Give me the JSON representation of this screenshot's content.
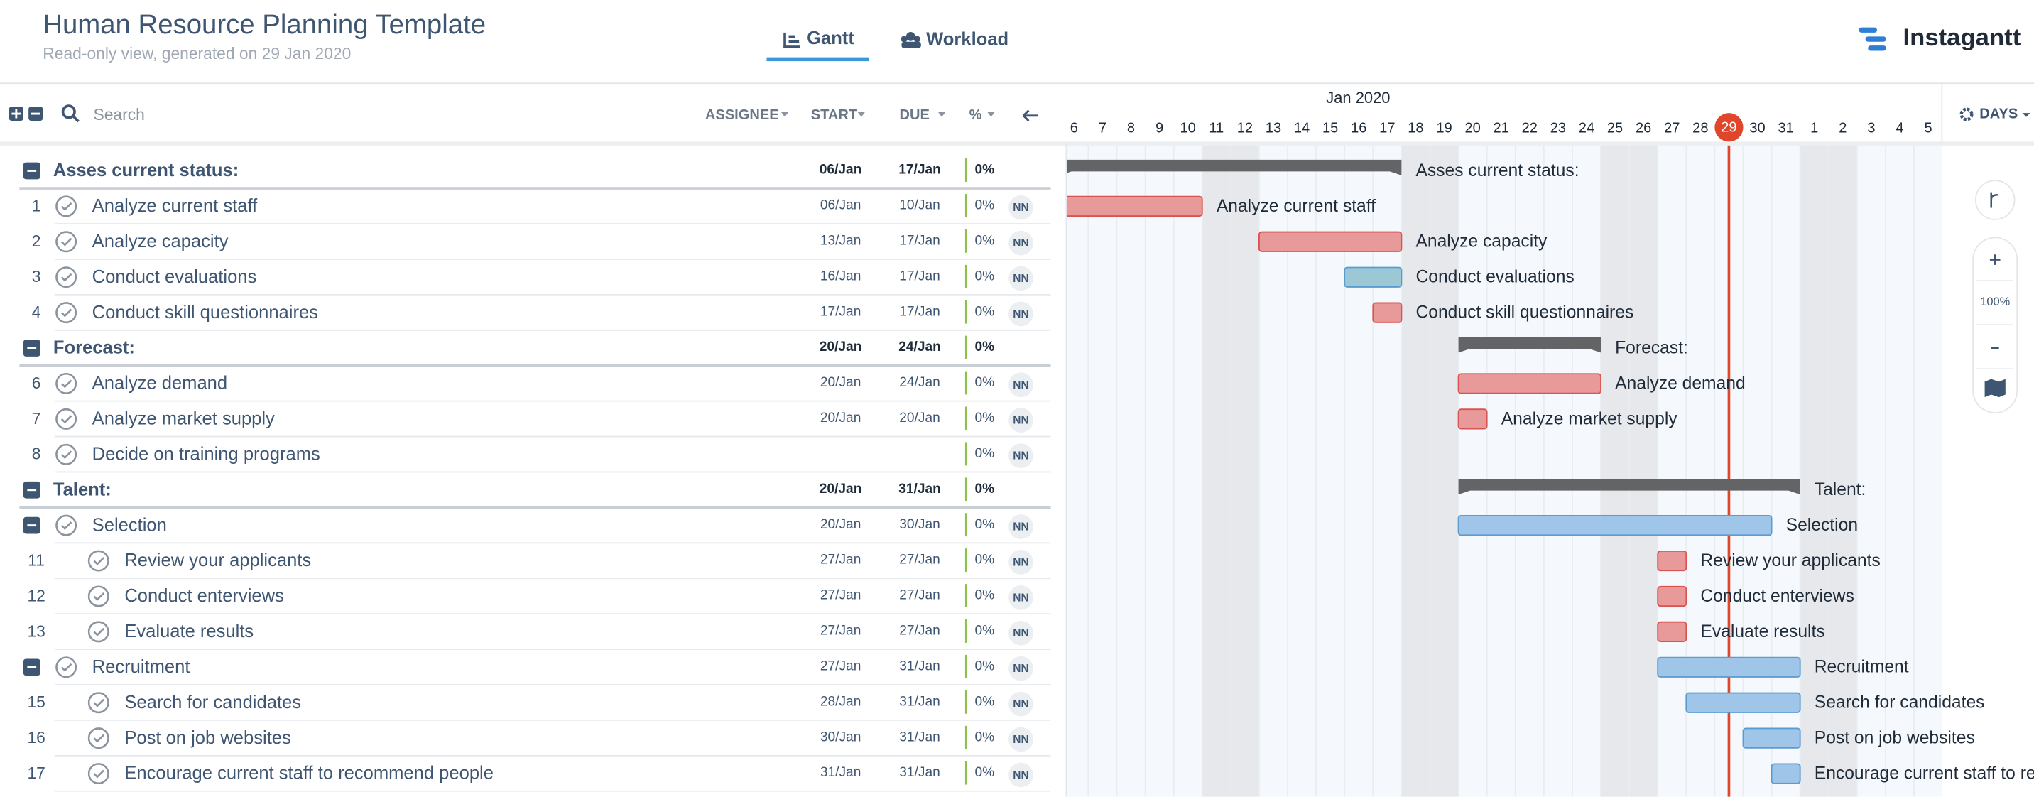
{
  "header": {
    "title": "Human Resource Planning Template",
    "subtitle": "Read-only view, generated on 29 Jan 2020",
    "tabs": [
      "Gantt",
      "Workload"
    ],
    "brand": "Instagantt"
  },
  "toolbar": {
    "search": "Search",
    "columns": [
      "ASSIGNEE",
      "START",
      "DUE",
      "%"
    ]
  },
  "timeline": {
    "month": "Jan 2020",
    "days": [
      "6",
      "7",
      "8",
      "9",
      "10",
      "11",
      "12",
      "13",
      "14",
      "15",
      "16",
      "17",
      "18",
      "19",
      "20",
      "21",
      "22",
      "23",
      "24",
      "25",
      "26",
      "27",
      "28",
      "29",
      "30",
      "31",
      "1",
      "2",
      "3",
      "4",
      "5"
    ],
    "today": "29",
    "scale": "DAYS",
    "zoom": "100%"
  },
  "sections": [
    {
      "name": "Asses current status:",
      "start": "06/Jan",
      "due": "17/Jan",
      "pct": "0%",
      "tasks": [
        {
          "num": "1",
          "name": "Analyze current staff",
          "start": "06/Jan",
          "due": "10/Jan",
          "pct": "0%",
          "assignee": "NN",
          "color": "#e89a9a"
        },
        {
          "num": "2",
          "name": "Analyze capacity",
          "start": "13/Jan",
          "due": "17/Jan",
          "pct": "0%",
          "assignee": "NN",
          "color": "#e89a9a"
        },
        {
          "num": "3",
          "name": "Conduct evaluations",
          "start": "16/Jan",
          "due": "17/Jan",
          "pct": "0%",
          "assignee": "NN",
          "color": "#9cc8d6"
        },
        {
          "num": "4",
          "name": "Conduct skill questionnaires",
          "start": "17/Jan",
          "due": "17/Jan",
          "pct": "0%",
          "assignee": "NN",
          "color": "#e89a9a"
        }
      ]
    },
    {
      "name": "Forecast:",
      "start": "20/Jan",
      "due": "24/Jan",
      "pct": "0%",
      "tasks": [
        {
          "num": "6",
          "name": "Analyze demand",
          "start": "20/Jan",
          "due": "24/Jan",
          "pct": "0%",
          "assignee": "NN",
          "color": "#e89a9a"
        },
        {
          "num": "7",
          "name": "Analyze market supply",
          "start": "20/Jan",
          "due": "20/Jan",
          "pct": "0%",
          "assignee": "NN",
          "color": "#e89a9a"
        },
        {
          "num": "8",
          "name": "Decide on training programs",
          "pct": "0%",
          "assignee": "NN"
        }
      ]
    },
    {
      "name": "Talent:",
      "start": "20/Jan",
      "due": "31/Jan",
      "pct": "0%",
      "tasks": [
        {
          "name": "Selection",
          "start": "20/Jan",
          "due": "30/Jan",
          "pct": "0%",
          "assignee": "NN",
          "color": "#9fc5e8",
          "tasks": [
            {
              "num": "11",
              "name": "Review your applicants",
              "start": "27/Jan",
              "due": "27/Jan",
              "pct": "0%",
              "assignee": "NN",
              "color": "#e89a9a"
            },
            {
              "num": "12",
              "name": "Conduct enterviews",
              "start": "27/Jan",
              "due": "27/Jan",
              "pct": "0%",
              "assignee": "NN",
              "color": "#e89a9a"
            },
            {
              "num": "13",
              "name": "Evaluate results",
              "start": "27/Jan",
              "due": "27/Jan",
              "pct": "0%",
              "assignee": "NN",
              "color": "#e89a9a"
            }
          ]
        },
        {
          "name": "Recruitment",
          "start": "27/Jan",
          "due": "31/Jan",
          "pct": "0%",
          "assignee": "NN",
          "color": "#9fc5e8",
          "tasks": [
            {
              "num": "15",
              "name": "Search for candidates",
              "start": "28/Jan",
              "due": "31/Jan",
              "pct": "0%",
              "assignee": "NN",
              "color": "#9fc5e8"
            },
            {
              "num": "16",
              "name": "Post on job websites",
              "start": "30/Jan",
              "due": "31/Jan",
              "pct": "0%",
              "assignee": "NN",
              "color": "#9fc5e8"
            },
            {
              "num": "17",
              "name": "Encourage current staff to recommend people",
              "start": "31/Jan",
              "due": "31/Jan",
              "pct": "0%",
              "assignee": "NN",
              "color": "#9fc5e8"
            }
          ]
        }
      ]
    }
  ]
}
